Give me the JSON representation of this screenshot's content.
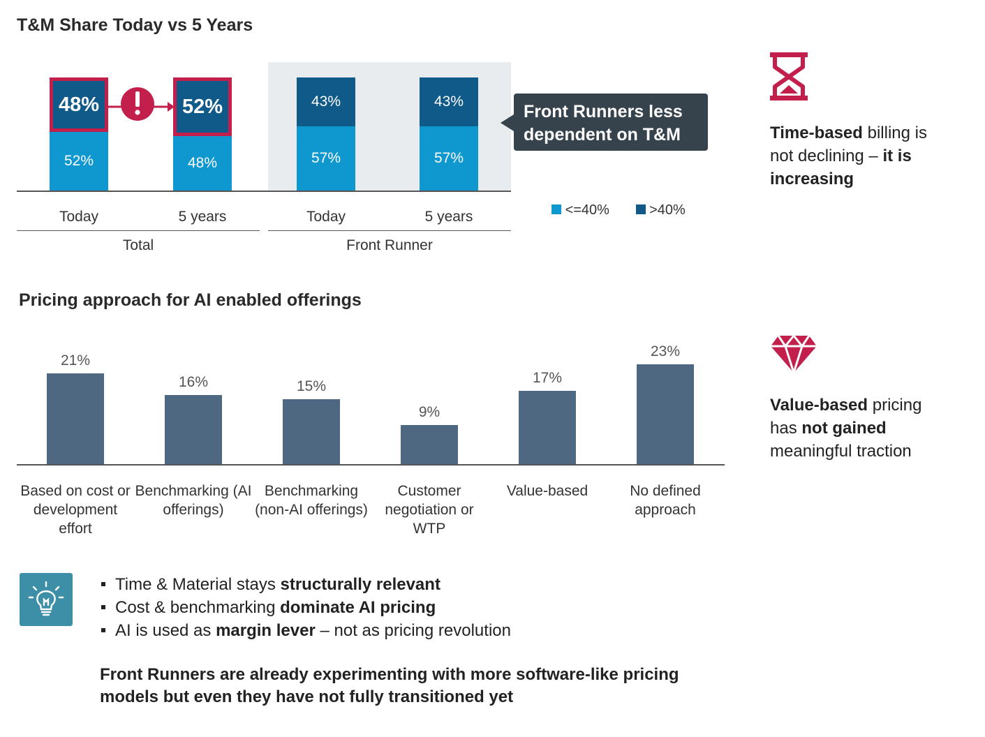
{
  "chart_data": [
    {
      "type": "bar",
      "stacked": true,
      "title": "T&M Share Today vs 5 Years",
      "groups": [
        {
          "name": "Total",
          "categories": [
            "Today",
            "5 years"
          ]
        },
        {
          "name": "Front Runner",
          "categories": [
            "Today",
            "5 years"
          ]
        }
      ],
      "series": [
        {
          "name": "<=40%",
          "color": "#0f97cf",
          "values": [
            52,
            48,
            57,
            57
          ],
          "labels": [
            "52%",
            "48%",
            "57%",
            "57%"
          ]
        },
        {
          "name": ">40%",
          "color": "#0f5a88",
          "values": [
            48,
            52,
            43,
            43
          ],
          "labels": [
            "48%",
            "52%",
            "43%",
            "43%"
          ]
        }
      ],
      "callout": "Front Runners less dependent on T&M",
      "legend": [
        "<=40%",
        ">40%"
      ],
      "highlight_color": "#c21f4c"
    },
    {
      "type": "bar",
      "title": "Pricing approach for AI enabled offerings",
      "categories": [
        "Based on cost or development effort",
        "Benchmarking (AI offerings)",
        "Benchmarking (non-AI offerings)",
        "Customer negotiation or WTP",
        "Value-based",
        "No defined approach"
      ],
      "values": [
        21,
        16,
        15,
        9,
        17,
        23
      ],
      "labels": [
        "21%",
        "16%",
        "15%",
        "9%",
        "17%",
        "23%"
      ],
      "bar_color": "#4d6880"
    }
  ],
  "side_notes": {
    "time_based": {
      "icon": "hourglass-icon",
      "parts": [
        [
          "Time-based",
          true
        ],
        [
          " billing is not declining – ",
          false
        ],
        [
          "it is increasing",
          true
        ]
      ]
    },
    "value_based": {
      "icon": "diamond-icon",
      "parts": [
        [
          "Value-based",
          true
        ],
        [
          " pricing has ",
          false
        ],
        [
          "not gained",
          true
        ],
        [
          " meaningful traction",
          false
        ]
      ]
    }
  },
  "insights": {
    "icon": "lightbulb-icon",
    "icon_bg": "#3d8fa8",
    "bullets": [
      [
        [
          "Time & Material stays ",
          false
        ],
        [
          "structurally relevant",
          true
        ]
      ],
      [
        [
          "Cost & benchmarking ",
          false
        ],
        [
          "dominate AI pricing",
          true
        ]
      ],
      [
        [
          "AI is used as ",
          false
        ],
        [
          "margin lever",
          true
        ],
        [
          " – not as pricing revolution",
          false
        ]
      ]
    ],
    "conclusion": "Front Runners are already experimenting with more software-like pricing models but even they have not fully transitioned yet"
  }
}
